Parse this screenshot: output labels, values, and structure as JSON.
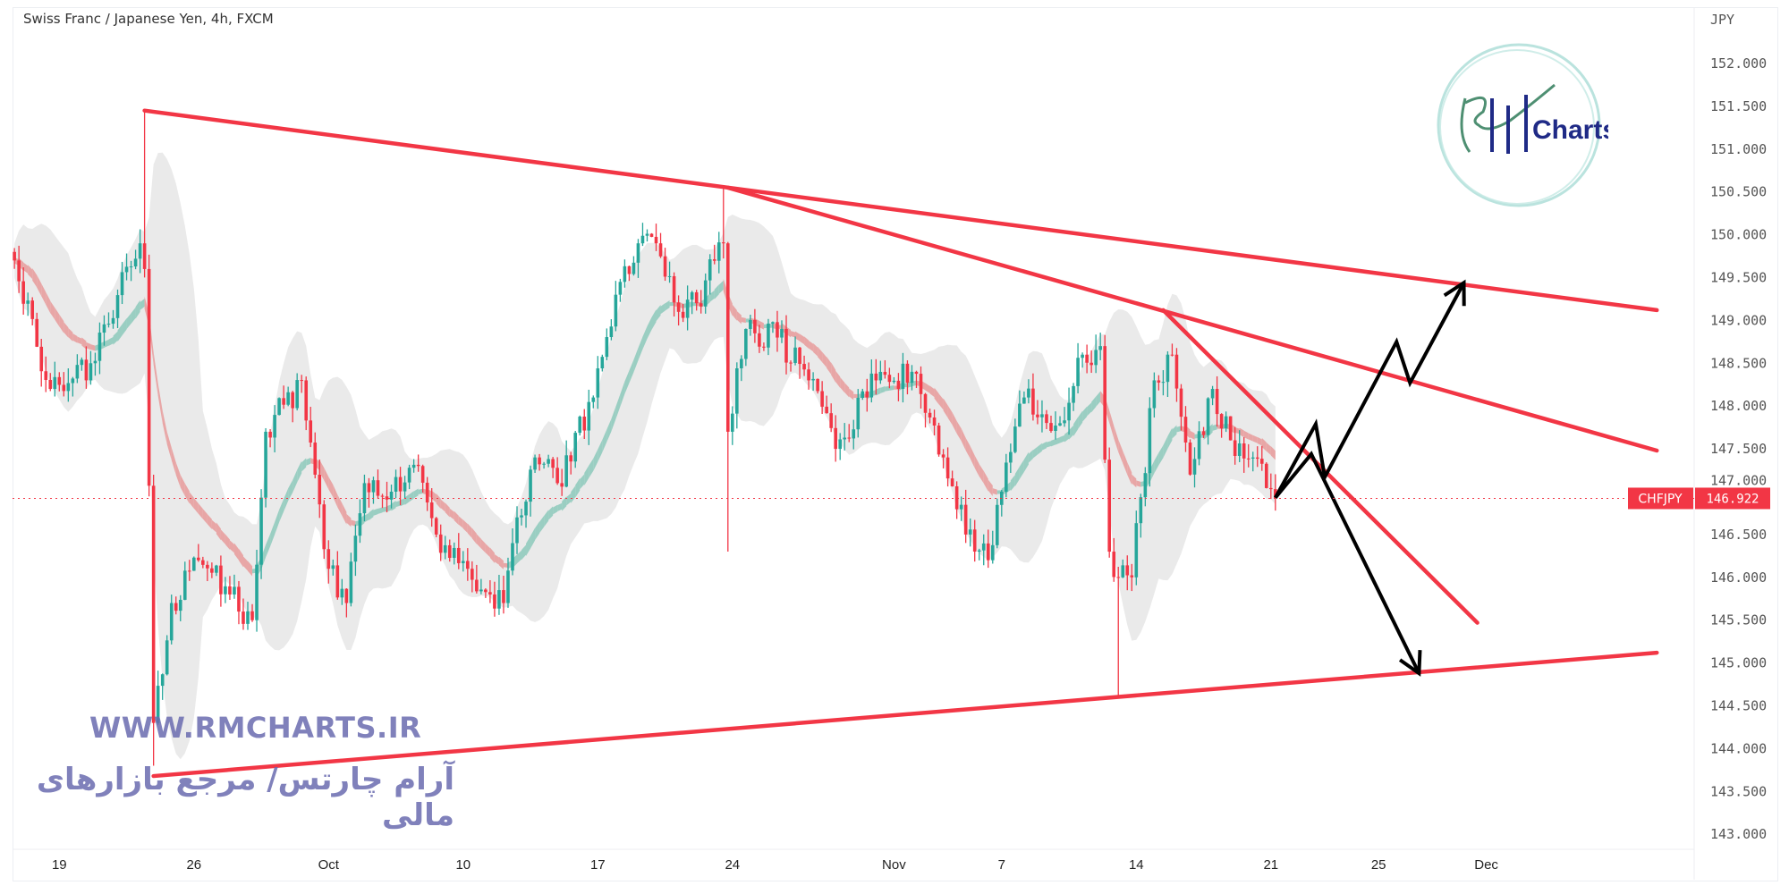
{
  "header": {
    "title": "Swiss Franc / Japanese Yen, 4h, FXCM"
  },
  "watermark": {
    "url": "WWW.RMCHARTS.IR",
    "tagline": "آرام چارتس/ مرجع بازارهای مالی",
    "logo_text": "RM Charts",
    "logo_word": "Charts"
  },
  "colors": {
    "up": "#26a69a",
    "down": "#f23645",
    "trendline": "#f23645",
    "arrow": "#000000",
    "ribbon_up": "#8cc9bb",
    "ribbon_down": "#e89a9a",
    "envelope": "#e3e3e3",
    "watermark": "#6a6cb0"
  },
  "chart_data": {
    "type": "candlestick",
    "symbol": "CHFJPY",
    "timeframe": "4h",
    "currency_label": "JPY",
    "last_price": "146.922",
    "ylim": [
      142.7,
      152.5
    ],
    "y_ticks": [
      "152.000",
      "151.500",
      "151.000",
      "150.500",
      "150.000",
      "149.500",
      "149.000",
      "148.500",
      "148.000",
      "147.500",
      "147.000",
      "146.500",
      "146.000",
      "145.500",
      "145.000",
      "144.500",
      "144.000",
      "143.500",
      "143.000"
    ],
    "x_ticks": [
      {
        "label": "19",
        "date": "2022-09-19"
      },
      {
        "label": "26",
        "date": "2022-09-26"
      },
      {
        "label": "Oct",
        "date": "2022-10-03"
      },
      {
        "label": "10",
        "date": "2022-10-10"
      },
      {
        "label": "17",
        "date": "2022-10-17"
      },
      {
        "label": "24",
        "date": "2022-10-24"
      },
      {
        "label": "Nov",
        "date": "2022-11-01"
      },
      {
        "label": "7",
        "date": "2022-11-07"
      },
      {
        "label": "14",
        "date": "2022-11-14"
      },
      {
        "label": "21",
        "date": "2022-11-21"
      },
      {
        "label": "25",
        "date": "2022-11-25"
      },
      {
        "label": "Dec",
        "date": "2022-12-01"
      }
    ],
    "price_path": [
      {
        "t": "2022-09-15 08",
        "c": 149.7
      },
      {
        "t": "2022-09-16 16",
        "c": 148.2
      },
      {
        "t": "2022-09-20 04",
        "c": 148.5
      },
      {
        "t": "2022-09-22 00",
        "c": 149.9
      },
      {
        "t": "2022-09-22 04",
        "c": 149.6,
        "h": 151.45
      },
      {
        "t": "2022-09-22 12",
        "c": 144.3,
        "l": 143.8
      },
      {
        "t": "2022-09-23 04",
        "c": 145.7
      },
      {
        "t": "2022-09-26 04",
        "c": 146.2
      },
      {
        "t": "2022-09-27 08",
        "c": 145.8
      },
      {
        "t": "2022-09-28 04",
        "c": 145.5
      },
      {
        "t": "2022-09-28 16",
        "c": 147.7
      },
      {
        "t": "2022-09-30 00",
        "c": 148.3
      },
      {
        "t": "2022-10-03 00",
        "c": 146.1
      },
      {
        "t": "2022-10-03 16",
        "c": 145.7
      },
      {
        "t": "2022-10-04 08",
        "c": 147.1
      },
      {
        "t": "2022-10-05 08",
        "c": 147.0
      },
      {
        "t": "2022-10-06 08",
        "c": 147.3
      },
      {
        "t": "2022-10-07 00",
        "c": 146.5
      },
      {
        "t": "2022-10-10 04",
        "c": 146.1
      },
      {
        "t": "2022-10-11 00",
        "c": 145.8
      },
      {
        "t": "2022-10-11 12",
        "c": 145.7
      },
      {
        "t": "2022-10-12 00",
        "c": 146.7
      },
      {
        "t": "2022-10-12 16",
        "c": 147.4
      },
      {
        "t": "2022-10-13 12",
        "c": 147.1
      },
      {
        "t": "2022-10-14 20",
        "c": 148.1
      },
      {
        "t": "2022-10-17 16",
        "c": 149.3
      },
      {
        "t": "2022-10-18 12",
        "c": 149.9
      },
      {
        "t": "2022-10-19 04",
        "c": 149.9
      },
      {
        "t": "2022-10-20 00",
        "c": 149.1
      },
      {
        "t": "2022-10-20 16",
        "c": 149.2
      },
      {
        "t": "2022-10-21 16",
        "c": 149.9,
        "h": 150.55
      },
      {
        "t": "2022-10-21 20",
        "c": 147.7,
        "l": 146.3
      },
      {
        "t": "2022-10-24 12",
        "c": 148.9
      },
      {
        "t": "2022-10-25 16",
        "c": 148.8
      },
      {
        "t": "2022-10-26 20",
        "c": 148.3
      },
      {
        "t": "2022-10-27 20",
        "c": 147.5
      },
      {
        "t": "2022-10-31 08",
        "c": 148.3
      },
      {
        "t": "2022-11-01 16",
        "c": 148.4
      },
      {
        "t": "2022-11-02 20",
        "c": 147.4
      },
      {
        "t": "2022-11-03 16",
        "c": 146.5
      },
      {
        "t": "2022-11-04 12",
        "c": 146.2
      },
      {
        "t": "2022-11-07 00",
        "c": 147.0
      },
      {
        "t": "2022-11-07 20",
        "c": 148.1
      },
      {
        "t": "2022-11-09 04",
        "c": 147.8
      },
      {
        "t": "2022-11-10 00",
        "c": 148.6
      },
      {
        "t": "2022-11-10 16",
        "c": 148.7
      },
      {
        "t": "2022-11-11 00",
        "c": 146.3
      },
      {
        "t": "2022-11-11 08",
        "c": 146.0,
        "l": 144.6
      },
      {
        "t": "2022-11-11 20",
        "c": 146.0
      },
      {
        "t": "2022-11-14 16",
        "c": 148.3
      },
      {
        "t": "2022-11-15 08",
        "c": 148.6
      },
      {
        "t": "2022-11-16 00",
        "c": 147.2
      },
      {
        "t": "2022-11-16 20",
        "c": 148.2
      },
      {
        "t": "2022-11-17 12",
        "c": 147.6
      },
      {
        "t": "2022-11-18 08",
        "c": 147.4
      },
      {
        "t": "2022-11-21 04",
        "c": 146.922
      }
    ],
    "trendlines": [
      {
        "name": "upper-resistance",
        "from": {
          "t": "2022-09-22 04",
          "p": 151.45
        },
        "to": {
          "t": "2022-12-09 08",
          "p": 149.12
        }
      },
      {
        "name": "middle-resistance",
        "from": {
          "t": "2022-10-21 20",
          "p": 150.55
        },
        "to": {
          "t": "2022-12-09 08",
          "p": 147.48
        }
      },
      {
        "name": "lower-support",
        "from": {
          "t": "2022-09-22 12",
          "p": 143.68
        },
        "to": {
          "t": "2022-12-09 08",
          "p": 145.12
        }
      },
      {
        "name": "short-resistance",
        "from": {
          "t": "2022-11-15 00",
          "p": 149.12
        },
        "to": {
          "t": "2022-11-30 16",
          "p": 145.47
        }
      }
    ],
    "projections": [
      {
        "name": "bullish-path",
        "points": [
          {
            "t": "2022-11-21 04",
            "p": 146.93
          },
          {
            "t": "2022-11-22 16",
            "p": 147.79
          },
          {
            "t": "2022-11-23 00",
            "p": 147.17
          },
          {
            "t": "2022-11-25 16",
            "p": 148.75
          },
          {
            "t": "2022-11-28 04",
            "p": 148.27
          },
          {
            "t": "2022-11-30 04",
            "p": 149.44
          }
        ]
      },
      {
        "name": "bearish-path",
        "points": [
          {
            "t": "2022-11-21 04",
            "p": 146.93
          },
          {
            "t": "2022-11-22 12",
            "p": 147.44
          },
          {
            "t": "2022-11-28 12",
            "p": 144.88
          }
        ]
      }
    ]
  }
}
